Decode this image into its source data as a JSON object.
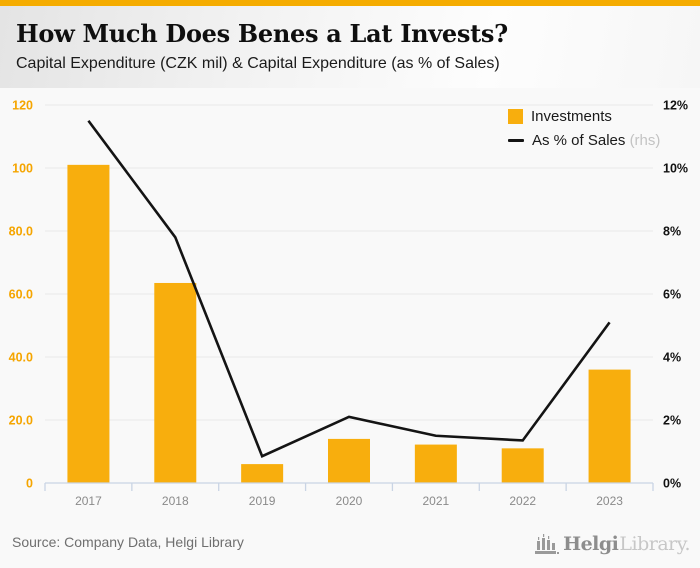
{
  "header": {
    "title": "How Much Does Benes a Lat Invests?",
    "subtitle": "Capital Expenditure (CZK mil) & Capital Expenditure (as % of Sales)"
  },
  "legend": {
    "investments_label": "Investments",
    "pct_label": "As % of Sales",
    "rhs_note": "(rhs)"
  },
  "footer": {
    "source": "Source: Company Data, Helgi Library",
    "brand_helgi": "Helgi",
    "brand_library": "Library."
  },
  "colors": {
    "accent": "#f5ac00",
    "bar": "#f8ae0d",
    "line": "#141414",
    "left_axis_text": "#f5a500",
    "right_axis_text": "#111111",
    "year_text": "#8a8a8a",
    "grid": "#e9e9e9",
    "axis": "#c9d4e4"
  },
  "chart_data": {
    "type": "bar",
    "title": "How Much Does Benes a Lat Invests?",
    "subtitle": "Capital Expenditure (CZK mil) & Capital Expenditure (as % of Sales)",
    "categories": [
      "2017",
      "2018",
      "2019",
      "2020",
      "2021",
      "2022",
      "2023"
    ],
    "series": [
      {
        "name": "Investments",
        "type": "bar",
        "axis": "left",
        "values": [
          101,
          63.5,
          6,
          14,
          12.2,
          11,
          36
        ]
      },
      {
        "name": "As % of Sales (rhs)",
        "type": "line",
        "axis": "right",
        "values": [
          11.5,
          7.8,
          0.85,
          2.1,
          1.5,
          1.35,
          5.1
        ]
      }
    ],
    "left_axis": {
      "label": "CZK mil",
      "min": 0,
      "max": 120,
      "tick_values": [
        120,
        100,
        80,
        60,
        40,
        20,
        0
      ],
      "tick_labels": [
        "120",
        "100",
        "80.0",
        "60.0",
        "40.0",
        "20.0",
        "0"
      ]
    },
    "right_axis": {
      "label": "% of Sales",
      "min": 0,
      "max": 12,
      "tick_values": [
        12,
        10,
        8,
        6,
        4,
        2,
        0
      ],
      "tick_labels": [
        "12%",
        "10%",
        "8%",
        "6%",
        "4%",
        "2%",
        "0%"
      ]
    },
    "grid": "on",
    "legend_position": "top-right"
  }
}
